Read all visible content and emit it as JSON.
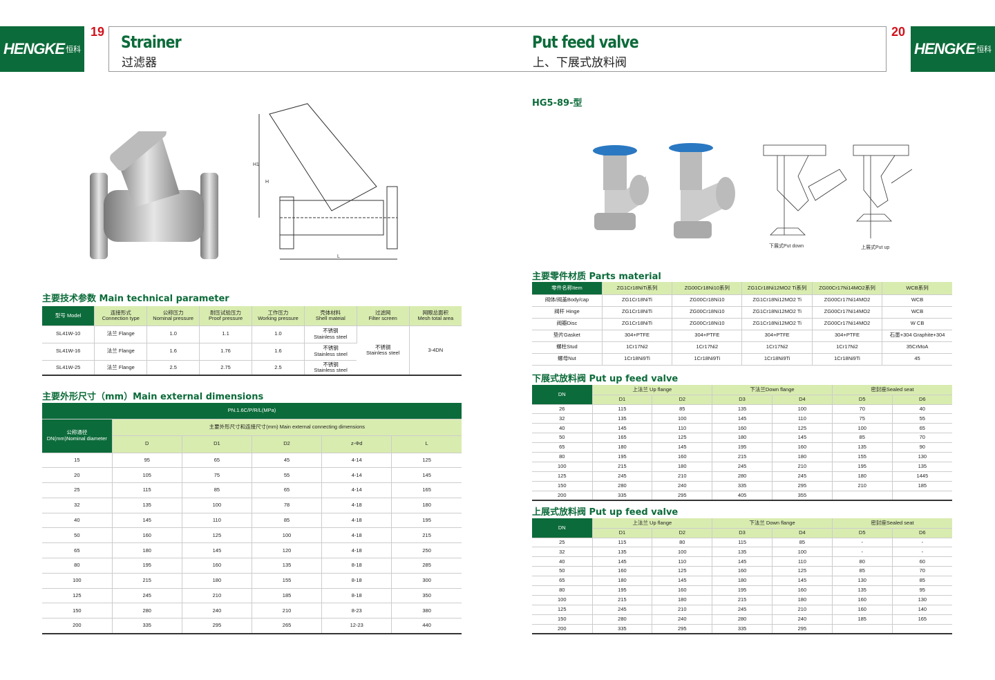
{
  "brand": {
    "name": "HENGKE",
    "name_cn": "恒科",
    "color": "#0c6b3a",
    "accent": "#d9ecb0",
    "page_num_color": "#d0121b"
  },
  "left": {
    "page_number": "19",
    "title": "Strainer",
    "subtitle": "过滤器",
    "tech": {
      "heading": "主要技术参数 Main technical parameter",
      "headers": [
        "型号 Model",
        "连接形式\nConnection type",
        "公称压力\nNominal pressure",
        "耐压试验压力\nProof pressure",
        "工作压力\nWorking pressure",
        "壳体材料\nShell mateial",
        "过滤网\nFilter screen",
        "网眼总面积\nMesh total area"
      ],
      "rows": [
        [
          "SL41W-10",
          "法兰 Flange",
          "1.0",
          "1.1",
          "1.0",
          "不锈钢\nStainless steel"
        ],
        [
          "SL41W-16",
          "法兰 Flange",
          "1.6",
          "1.76",
          "1.6",
          "不锈钢\nStainless steel"
        ],
        [
          "SL41W-25",
          "法兰 Flange",
          "2.5",
          "2.75",
          "2.5",
          "不锈钢\nStainless steel"
        ]
      ],
      "filter_screen": "不锈钢\nStainless steel",
      "mesh_area": "3-4DN"
    },
    "dims": {
      "heading": "主要外形尺寸（mm）Main external dimensions",
      "pn": "PN.1.6C/P/R/L(MPa)",
      "dn_header": "公称通径\nDN(mm)Nominal diameter",
      "group_header": "主要外形尺寸和连接尺寸(mm) Main external connecting dimensions",
      "columns": [
        "D",
        "D1",
        "D2",
        "z-Φd",
        "L"
      ],
      "rows": [
        [
          "15",
          "95",
          "65",
          "45",
          "4-14",
          "125"
        ],
        [
          "20",
          "105",
          "75",
          "55",
          "4-14",
          "145"
        ],
        [
          "25",
          "115",
          "85",
          "65",
          "4-14",
          "165"
        ],
        [
          "32",
          "135",
          "100",
          "78",
          "4-18",
          "180"
        ],
        [
          "40",
          "145",
          "110",
          "85",
          "4-18",
          "195"
        ],
        [
          "50",
          "160",
          "125",
          "100",
          "4-18",
          "215"
        ],
        [
          "65",
          "180",
          "145",
          "120",
          "4-18",
          "250"
        ],
        [
          "80",
          "195",
          "160",
          "135",
          "8-18",
          "285"
        ],
        [
          "100",
          "215",
          "180",
          "155",
          "8-18",
          "300"
        ],
        [
          "125",
          "245",
          "210",
          "185",
          "8-18",
          "350"
        ],
        [
          "150",
          "280",
          "240",
          "210",
          "8-23",
          "380"
        ],
        [
          "200",
          "335",
          "295",
          "265",
          "12-23",
          "440"
        ]
      ]
    },
    "drawing_labels": [
      "H1",
      "H",
      "L"
    ]
  },
  "right": {
    "page_number": "20",
    "title": "Put feed valve",
    "subtitle": "上、下展式放料阀",
    "model": "HG5-89-型",
    "captions": [
      "下展式Put down",
      "上展式Put up"
    ],
    "parts": {
      "heading": "主要零件材质 Parts material",
      "headers": [
        "零件名称Item",
        "ZG1Cr18NiTi系列",
        "ZG00Cr18Ni10系列",
        "ZG1Cr18Ni12MO2 Ti系列",
        "ZG00Cr17Ni14MO2系列",
        "WCB系列"
      ],
      "rows": [
        [
          "阀体/阀盖Body/cap",
          "ZG1Cr18NiTi",
          "ZG00Cr18Ni10",
          "ZG1Cr18Ni12MO2 Ti",
          "ZG00Cr17Ni14MO2",
          "WCB"
        ],
        [
          "阀杆 Hinge",
          "ZG1Cr18NiTi",
          "ZG00Cr18Ni10",
          "ZG1Cr18Ni12MO2 Ti",
          "ZG00Cr17Ni14MO2",
          "WCB"
        ],
        [
          "阀瓣Disc",
          "ZG1Cr18NiTi",
          "ZG00Cr18Ni10",
          "ZG1Cr18Ni12MO2 Ti",
          "ZG00Cr17Ni14MO2",
          "W CB"
        ],
        [
          "垫片Gasket",
          "304+PTFE",
          "304+PTFE",
          "304+PTFE",
          "304+PTFE",
          "石墨+304 Graphite+304"
        ],
        [
          "螺柱Stud",
          "1Cr17Ni2",
          "1Cr17Ni2",
          "1Cr17Ni2",
          "1Cr17Ni2",
          "35CrMoA"
        ],
        [
          "螺母Nut",
          "1Cr18Ni9Ti",
          "1Cr18Ni9Ti",
          "1Cr18Ni9Ti",
          "1Cr18Ni9Ti",
          "45"
        ]
      ]
    },
    "down": {
      "heading": "下展式放料阀 Put up feed valve",
      "groups": [
        "上法兰 Up flange",
        "下法兰Down flange",
        "密封座Sealed seat"
      ],
      "columns": [
        "DN",
        "D1",
        "D2",
        "D3",
        "D4",
        "D5",
        "D6"
      ],
      "rows": [
        [
          "26",
          "115",
          "85",
          "135",
          "100",
          "70",
          "40"
        ],
        [
          "32",
          "135",
          "100",
          "145",
          "110",
          "75",
          "55"
        ],
        [
          "40",
          "145",
          "110",
          "160",
          "125",
          "100",
          "65"
        ],
        [
          "50",
          "165",
          "125",
          "180",
          "145",
          "85",
          "70"
        ],
        [
          "65",
          "180",
          "145",
          "195",
          "160",
          "135",
          "90"
        ],
        [
          "80",
          "195",
          "160",
          "215",
          "180",
          "155",
          "130"
        ],
        [
          "100",
          "215",
          "180",
          "245",
          "210",
          "195",
          "135"
        ],
        [
          "125",
          "245",
          "210",
          "280",
          "245",
          "180",
          "1445"
        ],
        [
          "150",
          "280",
          "240",
          "335",
          "295",
          "210",
          "185"
        ],
        [
          "200",
          "335",
          "295",
          "405",
          "355",
          "",
          ""
        ]
      ]
    },
    "up": {
      "heading": "上展式放料阀 Put up feed valve",
      "groups": [
        "上法兰 Up flange",
        "下法兰 Down flange",
        "密封座Sealed seat"
      ],
      "columns": [
        "DN",
        "D1",
        "D2",
        "D3",
        "D4",
        "D5",
        "D6"
      ],
      "rows": [
        [
          "25",
          "115",
          "80",
          "115",
          "85",
          "-",
          "-"
        ],
        [
          "32",
          "135",
          "100",
          "135",
          "100",
          "-",
          "-"
        ],
        [
          "40",
          "145",
          "110",
          "145",
          "110",
          "80",
          "60"
        ],
        [
          "50",
          "160",
          "125",
          "160",
          "125",
          "85",
          "70"
        ],
        [
          "65",
          "180",
          "145",
          "180",
          "145",
          "130",
          "85"
        ],
        [
          "80",
          "195",
          "160",
          "195",
          "160",
          "135",
          "95"
        ],
        [
          "100",
          "215",
          "180",
          "215",
          "180",
          "160",
          "130"
        ],
        [
          "125",
          "245",
          "210",
          "245",
          "210",
          "160",
          "140"
        ],
        [
          "150",
          "280",
          "240",
          "280",
          "240",
          "185",
          "165"
        ],
        [
          "200",
          "335",
          "295",
          "335",
          "295",
          "",
          ""
        ]
      ]
    }
  }
}
